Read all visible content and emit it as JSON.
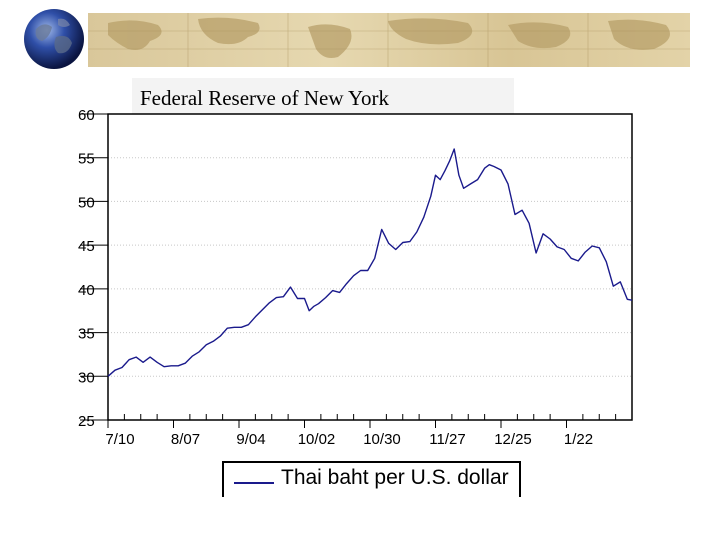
{
  "source_label": "Federal Reserve of New York",
  "colors": {
    "series": "#1a1a8c",
    "grid": "#c8c8c8",
    "banner": "#d9c79a"
  },
  "decorations": {
    "globe": "globe-icon",
    "banner": "world-map-banner"
  },
  "chart_data": {
    "type": "line",
    "title": "",
    "xlabel": "",
    "ylabel": "",
    "ylim": [
      25,
      60
    ],
    "yticks": [
      25,
      30,
      35,
      40,
      45,
      50,
      55,
      60
    ],
    "gridlines": [
      30,
      35,
      40,
      45,
      50,
      55
    ],
    "x_tick_labels": [
      "7/10",
      "8/07",
      "9/04",
      "10/02",
      "10/30",
      "11/27",
      "12/25",
      "1/22"
    ],
    "x_tick_positions": [
      0,
      28,
      56,
      84,
      112,
      140,
      168,
      196
    ],
    "xlim": [
      0,
      224
    ],
    "legend": "Thai baht per U.S. dollar",
    "series": [
      {
        "name": "Thai baht per U.S. dollar",
        "x": [
          0,
          3,
          6,
          9,
          12,
          15,
          18,
          21,
          24,
          27,
          30,
          33,
          36,
          39,
          42,
          45,
          48,
          51,
          54,
          57,
          60,
          63,
          66,
          69,
          72,
          75,
          78,
          81,
          84,
          86,
          88,
          90,
          93,
          96,
          99,
          102,
          105,
          108,
          111,
          114,
          117,
          120,
          123,
          126,
          129,
          132,
          135,
          138,
          140,
          142,
          144,
          146,
          148,
          150,
          152,
          155,
          158,
          161,
          163,
          165,
          168,
          171,
          174,
          177,
          180,
          183,
          186,
          189,
          192,
          195,
          198,
          201,
          204,
          207,
          210,
          213,
          216,
          219,
          222,
          224
        ],
        "values": [
          30.0,
          30.7,
          31.0,
          31.9,
          32.2,
          31.6,
          32.2,
          31.6,
          31.1,
          31.2,
          31.2,
          31.5,
          32.3,
          32.8,
          33.6,
          34.0,
          34.6,
          35.5,
          35.6,
          35.6,
          35.9,
          36.8,
          37.6,
          38.4,
          39.0,
          39.1,
          40.2,
          38.9,
          38.9,
          37.5,
          38.0,
          38.3,
          39.0,
          39.8,
          39.6,
          40.6,
          41.5,
          42.1,
          42.1,
          43.5,
          46.8,
          45.2,
          44.5,
          45.3,
          45.4,
          46.5,
          48.2,
          50.6,
          53.0,
          52.5,
          53.5,
          54.6,
          56.0,
          53.0,
          51.5,
          52.0,
          52.5,
          53.8,
          54.2,
          54.0,
          53.6,
          52.0,
          48.5,
          49.0,
          47.5,
          44.1,
          46.3,
          45.7,
          44.8,
          44.5,
          43.5,
          43.2,
          44.2,
          44.9,
          44.7,
          43.1,
          40.3,
          40.8,
          38.8,
          38.7
        ]
      }
    ]
  }
}
